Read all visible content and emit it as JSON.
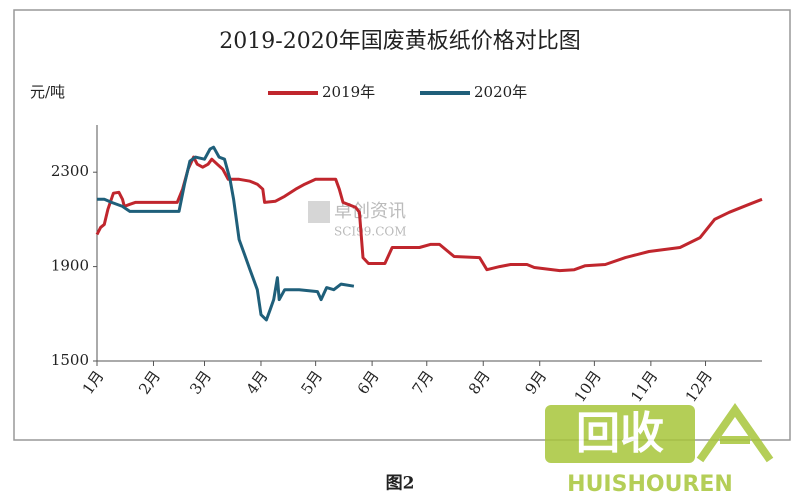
{
  "chart_data": {
    "type": "line",
    "title": "2019-2020年国废黄板纸价格对比图",
    "y_label": "元/吨",
    "xlim": [
      0,
      365
    ],
    "xticks": [
      {
        "value": 0,
        "label": "1月"
      },
      {
        "value": 31,
        "label": "2月"
      },
      {
        "value": 59,
        "label": "3月"
      },
      {
        "value": 90,
        "label": "4月"
      },
      {
        "value": 120,
        "label": "5月"
      },
      {
        "value": 151,
        "label": "6月"
      },
      {
        "value": 181,
        "label": "7月"
      },
      {
        "value": 212,
        "label": "8月"
      },
      {
        "value": 243,
        "label": "9月"
      },
      {
        "value": 273,
        "label": "10月"
      },
      {
        "value": 304,
        "label": "11月"
      },
      {
        "value": 334,
        "label": "12月"
      }
    ],
    "ylim": [
      1500,
      2500
    ],
    "yticks": [
      1500,
      1900,
      2300
    ],
    "grid": false,
    "legend": "top",
    "series": [
      {
        "name": "2019年",
        "color": "#c0262d",
        "x": [
          0,
          2,
          4,
          6,
          9,
          12,
          14,
          15,
          18,
          21,
          40,
          44,
          47,
          50,
          53,
          55,
          58,
          61,
          63,
          66,
          69,
          72,
          78,
          84,
          88,
          91,
          92,
          98,
          103,
          109,
          114,
          120,
          131,
          133,
          135,
          142,
          144,
          146,
          149,
          158,
          162,
          177,
          183,
          188,
          196,
          210,
          214,
          221,
          227,
          236,
          240,
          254,
          262,
          268,
          279,
          290,
          303,
          320,
          331,
          339,
          347,
          358,
          365
        ],
        "values": [
          2036,
          2066,
          2079,
          2143,
          2211,
          2215,
          2185,
          2155,
          2164,
          2172,
          2172,
          2172,
          2228,
          2313,
          2364,
          2334,
          2321,
          2334,
          2355,
          2334,
          2313,
          2270,
          2270,
          2262,
          2249,
          2228,
          2172,
          2177,
          2198,
          2228,
          2249,
          2270,
          2270,
          2228,
          2172,
          2151,
          2130,
          1938,
          1913,
          1913,
          1981,
          1981,
          1994,
          1994,
          1943,
          1938,
          1887,
          1900,
          1909,
          1909,
          1896,
          1883,
          1887,
          1904,
          1909,
          1938,
          1964,
          1981,
          2023,
          2100,
          2130,
          2164,
          2185
        ]
      },
      {
        "name": "2020年",
        "color": "#1f5f7a",
        "x": [
          0,
          4,
          8,
          14,
          18,
          45,
          48,
          51,
          54,
          59,
          62,
          64,
          67,
          70,
          73,
          75,
          78,
          81,
          84,
          88,
          90,
          93,
          95,
          97,
          99,
          100,
          103,
          111,
          121,
          123,
          126,
          130,
          134,
          141
        ],
        "values": [
          2185,
          2185,
          2172,
          2155,
          2134,
          2134,
          2249,
          2347,
          2364,
          2355,
          2398,
          2406,
          2364,
          2355,
          2270,
          2185,
          2015,
          1951,
          1887,
          1802,
          1696,
          1674,
          1717,
          1760,
          1853,
          1760,
          1802,
          1802,
          1794,
          1760,
          1811,
          1802,
          1826,
          1817
        ]
      }
    ],
    "watermark": "卓创资讯",
    "watermark_sub": "SCI99.COM",
    "caption": "图2",
    "logo_text": "回收",
    "logo_sub": "HUISHOUREN"
  }
}
